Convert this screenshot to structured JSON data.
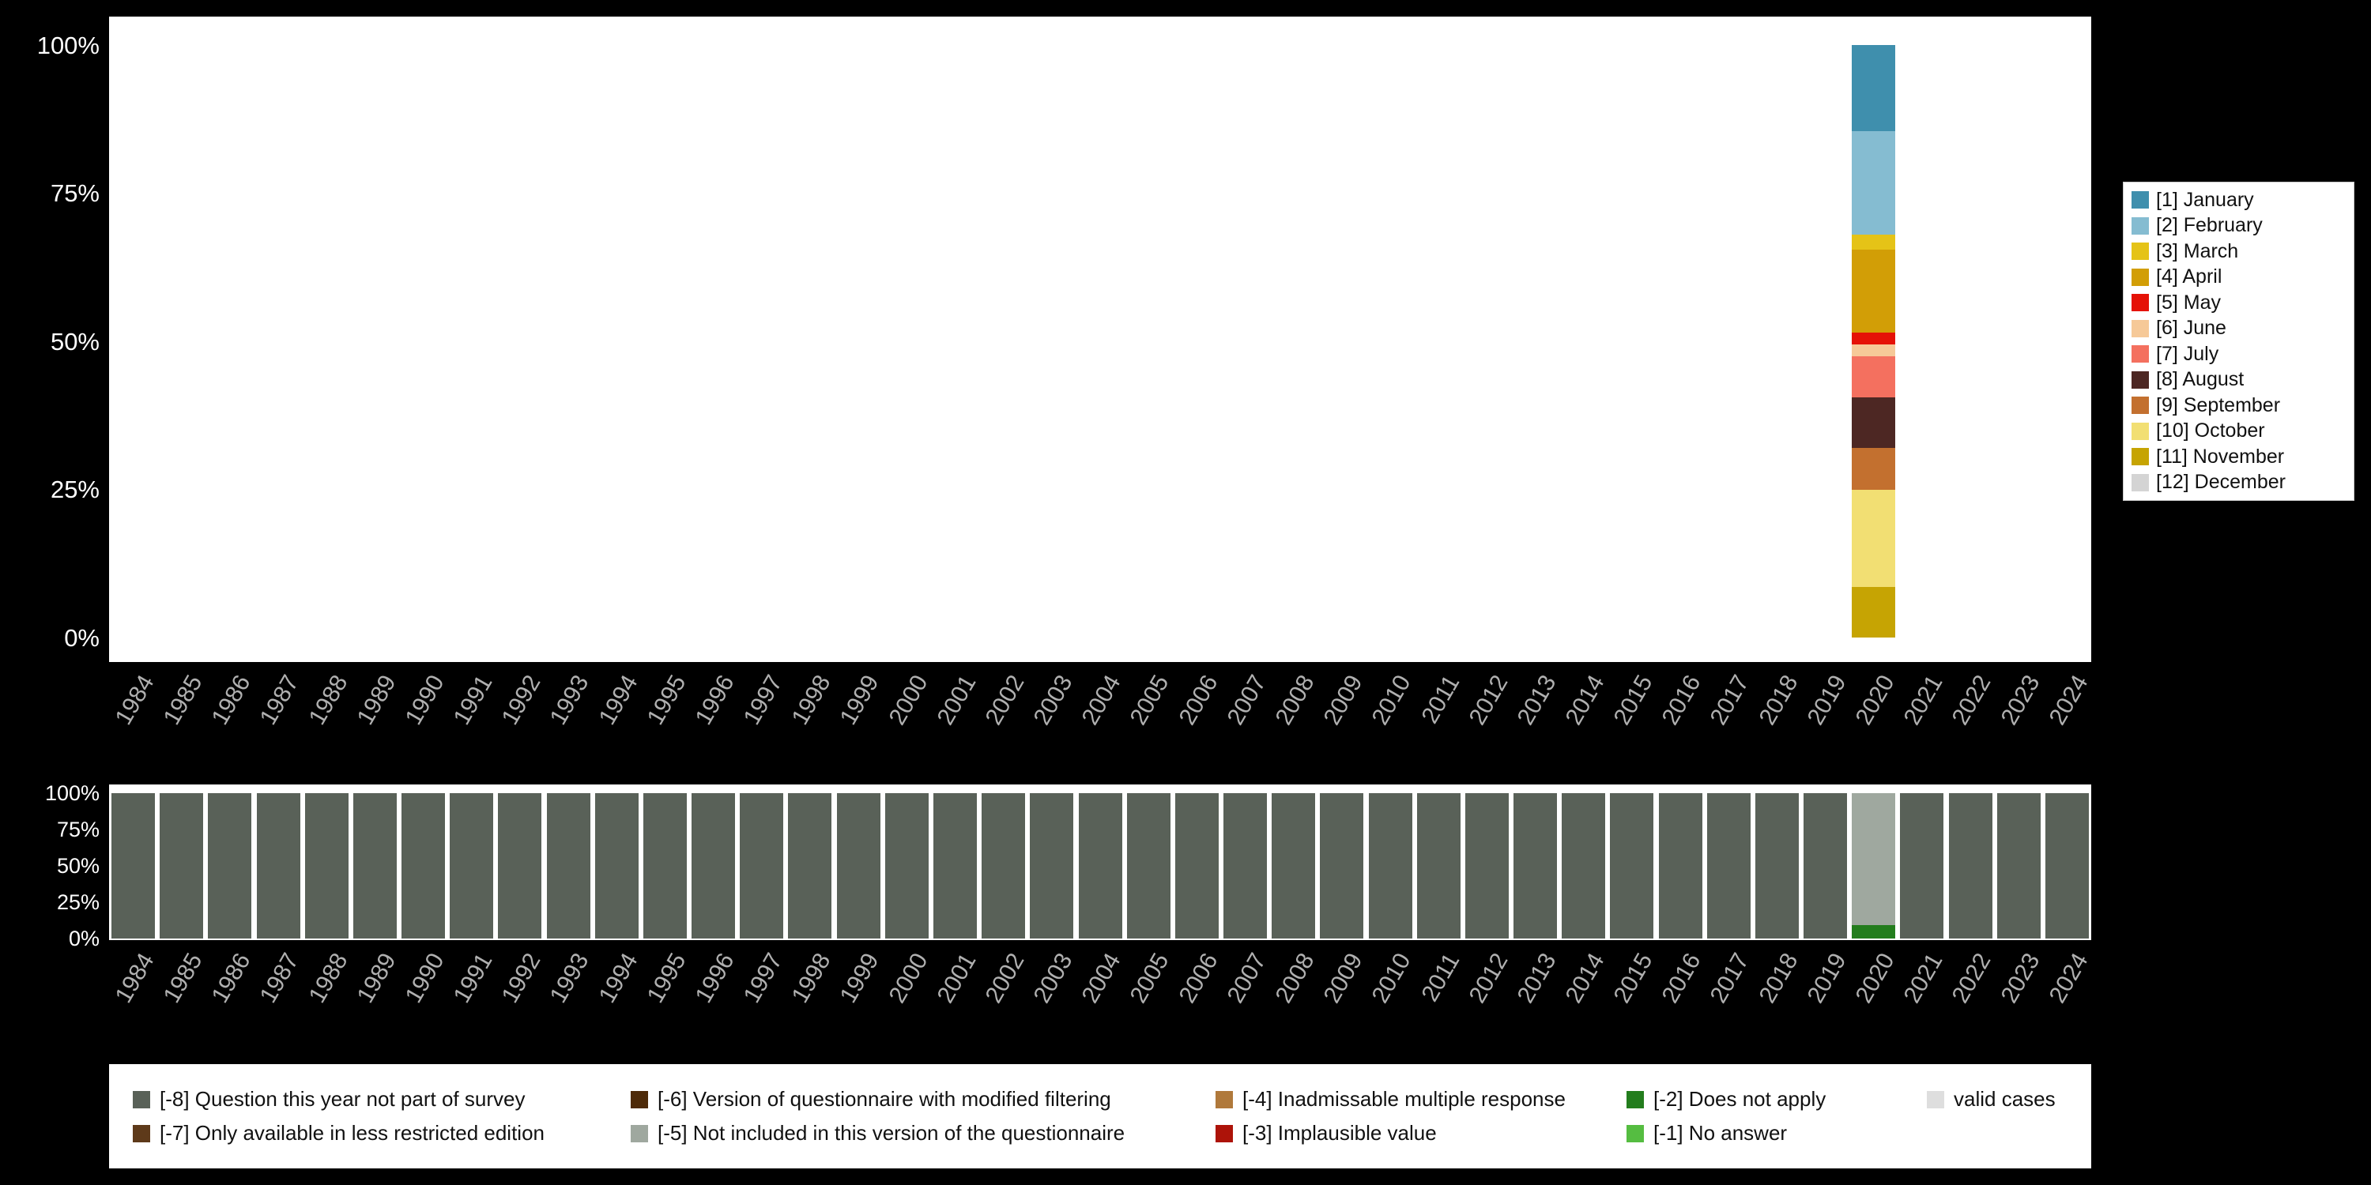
{
  "colors": {
    "background": "#000000",
    "panel": "#ffffff",
    "y_axis_text": "#ffffff",
    "year_label_text": "#b0b0b0"
  },
  "chart_data": [
    {
      "id": "month-distribution-by-year",
      "type": "bar",
      "stacked": true,
      "ylim": [
        0,
        100
      ],
      "yticks": [
        "100%",
        "75%",
        "50%",
        "25%",
        "0%"
      ],
      "categories": [
        "1984",
        "1985",
        "1986",
        "1987",
        "1988",
        "1989",
        "1990",
        "1991",
        "1992",
        "1993",
        "1994",
        "1995",
        "1996",
        "1997",
        "1998",
        "1999",
        "2000",
        "2001",
        "2002",
        "2003",
        "2004",
        "2005",
        "2006",
        "2007",
        "2008",
        "2009",
        "2010",
        "2011",
        "2012",
        "2013",
        "2014",
        "2015",
        "2016",
        "2017",
        "2018",
        "2019",
        "2020",
        "2021",
        "2022",
        "2023",
        "2024"
      ],
      "bars": {
        "2020": [
          {
            "label": "[1] January",
            "value": 14.5
          },
          {
            "label": "[2] February",
            "value": 17.5
          },
          {
            "label": "[3] March",
            "value": 2.5
          },
          {
            "label": "[4] April",
            "value": 14
          },
          {
            "label": "[5] May",
            "value": 2
          },
          {
            "label": "[6] June",
            "value": 2
          },
          {
            "label": "[7] July",
            "value": 7
          },
          {
            "label": "[8] August",
            "value": 8.5
          },
          {
            "label": "[9] September",
            "value": 7
          },
          {
            "label": "[10] October",
            "value": 16.5
          },
          {
            "label": "[11] November",
            "value": 8.5
          },
          {
            "label": "[12] December",
            "value": 0
          }
        ]
      },
      "legend": {
        "position": "right",
        "entries": [
          {
            "label": "[1] January",
            "color": "#3f8fad"
          },
          {
            "label": "[2] February",
            "color": "#85bcd1"
          },
          {
            "label": "[3] March",
            "color": "#e5c317"
          },
          {
            "label": "[4] April",
            "color": "#d29e06"
          },
          {
            "label": "[5] May",
            "color": "#e51207"
          },
          {
            "label": "[6] June",
            "color": "#f6c998"
          },
          {
            "label": "[7] July",
            "color": "#f4705f"
          },
          {
            "label": "[8] August",
            "color": "#4d2723"
          },
          {
            "label": "[9] September",
            "color": "#c3702f"
          },
          {
            "label": "[10] October",
            "color": "#f2df73"
          },
          {
            "label": "[11] November",
            "color": "#c6a403"
          },
          {
            "label": "[12] December",
            "color": "#d4d4d4"
          }
        ]
      }
    },
    {
      "id": "missing-values-by-year",
      "type": "bar",
      "stacked": true,
      "ylim": [
        0,
        100
      ],
      "yticks": [
        "100%",
        "75%",
        "50%",
        "25%",
        "0%"
      ],
      "categories": [
        "1984",
        "1985",
        "1986",
        "1987",
        "1988",
        "1989",
        "1990",
        "1991",
        "1992",
        "1993",
        "1994",
        "1995",
        "1996",
        "1997",
        "1998",
        "1999",
        "2000",
        "2001",
        "2002",
        "2003",
        "2004",
        "2005",
        "2006",
        "2007",
        "2008",
        "2009",
        "2010",
        "2011",
        "2012",
        "2013",
        "2014",
        "2015",
        "2016",
        "2017",
        "2018",
        "2019",
        "2020",
        "2021",
        "2022",
        "2023",
        "2024"
      ],
      "bars_default": [
        {
          "label": "[-8] Question this year not part of survey",
          "value": 100
        }
      ],
      "bars": {
        "2020": [
          {
            "label": "[-5] Not included in this version of the questionnaire",
            "value": 91
          },
          {
            "label": "[-2] Does not apply",
            "value": 9
          }
        ]
      },
      "legend": {
        "position": "bottom",
        "rows": [
          [
            {
              "label": "[-8] Question this year not part of survey",
              "color": "#596158"
            },
            {
              "label": "[-6] Version of questionnaire with modified filtering",
              "color": "#4e2a08"
            },
            {
              "label": "[-4] Inadmissable multiple response",
              "color": "#b0793b"
            },
            {
              "label": "[-2] Does not apply",
              "color": "#237d1d"
            },
            {
              "label": "valid cases",
              "color": "#dedede"
            }
          ],
          [
            {
              "label": "[-7] Only available in less restricted edition",
              "color": "#5e3a1a"
            },
            {
              "label": "[-5] Not included in this version of the questionnaire",
              "color": "#9fa89f"
            },
            {
              "label": "[-3] Implausible value",
              "color": "#ad1309"
            },
            {
              "label": "[-1] No answer",
              "color": "#55bd41"
            }
          ]
        ]
      }
    }
  ]
}
